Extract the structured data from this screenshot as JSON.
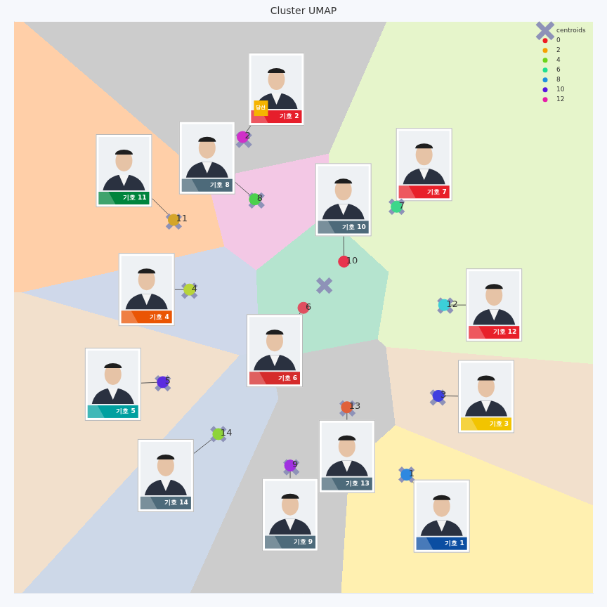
{
  "chart_data": {
    "type": "scatter",
    "title": "Cluster UMAP",
    "xlim": [
      0,
      100
    ],
    "ylim": [
      0,
      100
    ],
    "tick_labels": false,
    "grid": false,
    "legend": "upper right",
    "centroids": {
      "name": "centroids",
      "marker": "x",
      "color": "#8e92b8",
      "x": [
        53.6,
        57.6,
        27.6,
        30.3,
        35.3,
        41.9,
        66.1,
        74.5,
        67.8,
        73.2,
        25.7,
        47.9,
        39.7
      ],
      "y": [
        53.8,
        32.3,
        65.0,
        52.9,
        27.8,
        68.7,
        67.6,
        50.3,
        20.7,
        34.2,
        36.7,
        22.0,
        79.3
      ],
      "region_colors": [
        "#b5e4cf",
        "#cccccc",
        "#ffcfa8",
        "#cfd8ea",
        "#cdd8e8",
        "#f3c8e5",
        "#e6f5cb",
        "#e6f5cb",
        "#fff0b0",
        "#f2e0cc",
        "#f2e0cc",
        "#cccccc",
        "#cccccc"
      ]
    },
    "points": {
      "labels": [
        "1",
        "2",
        "3",
        "4",
        "5",
        "6",
        "7",
        "8",
        "9",
        "10",
        "11",
        "12",
        "13",
        "14"
      ],
      "x": [
        67.8,
        39.5,
        73.3,
        30.3,
        25.7,
        50.0,
        66.1,
        41.6,
        47.7,
        57.0,
        27.6,
        74.3,
        57.5,
        35.3
      ],
      "y": [
        20.7,
        79.8,
        34.5,
        53.1,
        36.9,
        49.9,
        67.6,
        68.9,
        22.3,
        58.0,
        65.3,
        50.4,
        32.5,
        27.8
      ],
      "colors": [
        "#2f88e0",
        "#d030c8",
        "#3f3fe0",
        "#b8d43a",
        "#5a2ce0",
        "#e05060",
        "#3dd68a",
        "#4cd04c",
        "#a030e0",
        "#e8344e",
        "#d4a52a",
        "#3ccfd8",
        "#e0603a",
        "#8ed43a"
      ]
    },
    "hue_legend": [
      {
        "name": "0",
        "color": "#ee1c25"
      },
      {
        "name": "2",
        "color": "#f5a000"
      },
      {
        "name": "4",
        "color": "#6cd51a"
      },
      {
        "name": "6",
        "color": "#1fe090"
      },
      {
        "name": "8",
        "color": "#1f8fe0"
      },
      {
        "name": "10",
        "color": "#5a17e0"
      },
      {
        "name": "12",
        "color": "#e61fa8"
      }
    ],
    "cards": [
      {
        "label": "기호 1",
        "color": "#0b4ea2"
      },
      {
        "label": "기호 2",
        "color": "#e61e2b",
        "badge": "당선"
      },
      {
        "label": "기호 3",
        "color": "#f2c400"
      },
      {
        "label": "기호 4",
        "color": "#ea5504"
      },
      {
        "label": "기호 5",
        "color": "#00a0a0"
      },
      {
        "label": "기호 6",
        "color": "#d52b2b"
      },
      {
        "label": "기호 7",
        "color": "#e8202a"
      },
      {
        "label": "기호 8",
        "color": "#4d6a7a"
      },
      {
        "label": "기호 9",
        "color": "#4d6a7a"
      },
      {
        "label": "기호 10",
        "color": "#4d6a7a"
      },
      {
        "label": "기호 11",
        "color": "#00843d"
      },
      {
        "label": "기호 12",
        "color": "#e8202a"
      },
      {
        "label": "기호 13",
        "color": "#4d6a7a"
      },
      {
        "label": "기호 14",
        "color": "#4d6a7a"
      }
    ]
  }
}
